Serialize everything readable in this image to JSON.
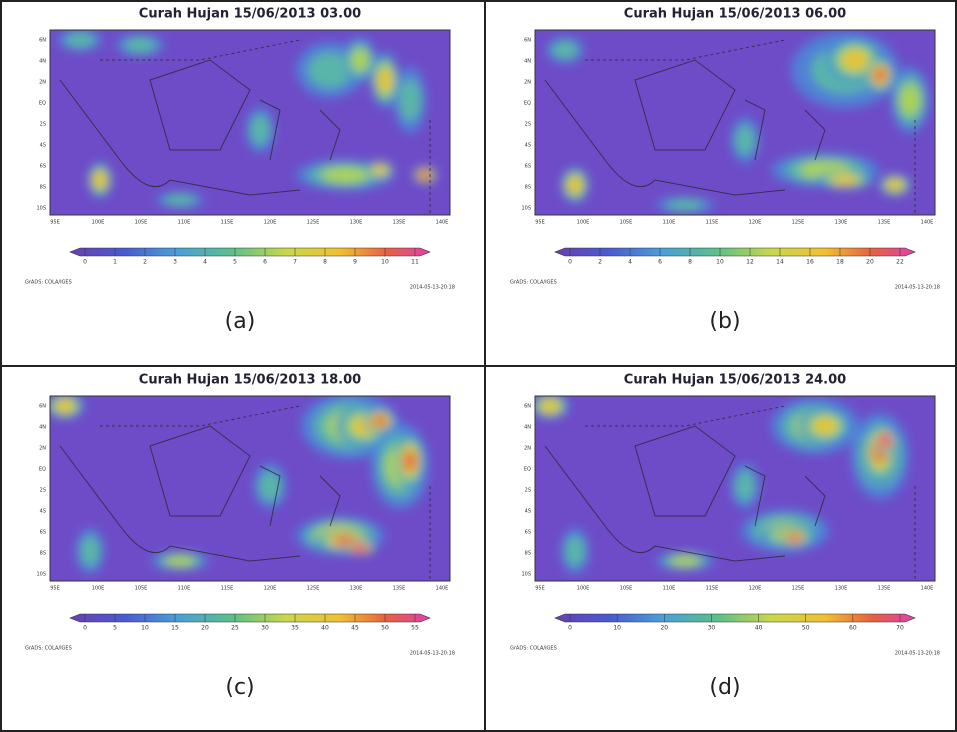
{
  "panels": [
    {
      "title": "Curah Hujan 15/06/2013 03.00",
      "colorbar_ticks": [
        0,
        1,
        2,
        3,
        4,
        5,
        6,
        7,
        8,
        9,
        10,
        11
      ],
      "label": "(a)"
    },
    {
      "title": "Curah Hujan 15/06/2013 06.00",
      "colorbar_ticks": [
        0,
        2,
        4,
        6,
        8,
        10,
        12,
        14,
        16,
        18,
        20,
        22
      ],
      "label": "(b)"
    },
    {
      "title": "Curah Hujan 15/06/2013 18.00",
      "colorbar_ticks": [
        0,
        5,
        10,
        15,
        20,
        25,
        30,
        35,
        40,
        45,
        50,
        55
      ],
      "label": "(c)"
    },
    {
      "title": "Curah Hujan 15/06/2013 24.00",
      "colorbar_ticks": [
        0,
        10,
        20,
        30,
        40,
        50,
        60,
        70
      ],
      "label": "(d)"
    }
  ],
  "lon_labels": [
    "95E",
    "100E",
    "105E",
    "110E",
    "115E",
    "120E",
    "125E",
    "130E",
    "135E",
    "140E"
  ],
  "lat_labels": [
    "6N",
    "4N",
    "2N",
    "EQ",
    "2S",
    "4S",
    "6S",
    "8S",
    "10S"
  ],
  "credit": "GrADS: COLA/IGES",
  "timestamp": "2014-05-13-20:18"
}
